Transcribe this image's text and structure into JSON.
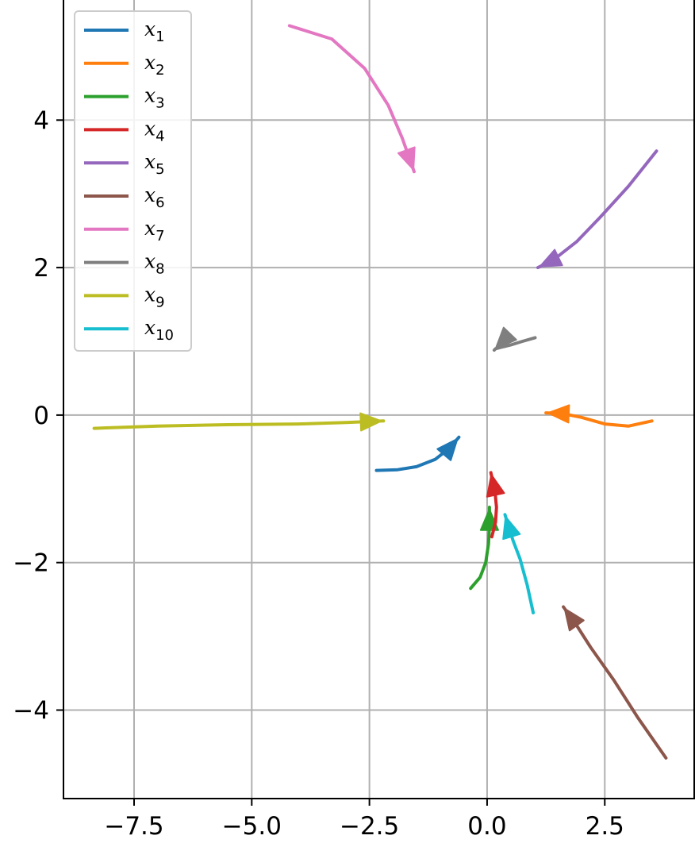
{
  "chart_data": {
    "type": "line",
    "title": "",
    "xlabel": "",
    "ylabel": "",
    "xlim": [
      -9.0,
      4.4
    ],
    "ylim": [
      -5.2,
      5.65
    ],
    "xticks": [
      -7.5,
      -5.0,
      -2.5,
      0.0,
      2.5
    ],
    "xtick_labels": [
      "−7.5",
      "−5.0",
      "−2.5",
      "0.0",
      "2.5"
    ],
    "yticks": [
      -4,
      -2,
      0,
      2,
      4
    ],
    "ytick_labels": [
      "−4",
      "−2",
      "0",
      "2",
      "4"
    ],
    "grid": true,
    "legend_position": "upper-left",
    "series": [
      {
        "name": "x",
        "sub": "1",
        "color": "#1f77b4",
        "x": [
          -2.35,
          -1.9,
          -1.5,
          -1.1,
          -0.8,
          -0.6
        ],
        "y": [
          -0.75,
          -0.74,
          -0.7,
          -0.6,
          -0.45,
          -0.3
        ]
      },
      {
        "name": "x",
        "sub": "2",
        "color": "#ff7f0e",
        "x": [
          3.5,
          3.0,
          2.5,
          2.0,
          1.6,
          1.25
        ],
        "y": [
          -0.08,
          -0.15,
          -0.12,
          -0.03,
          0.02,
          0.03
        ]
      },
      {
        "name": "x",
        "sub": "3",
        "color": "#2ca02c",
        "x": [
          -0.35,
          -0.15,
          -0.03,
          0.03,
          0.05,
          0.05
        ],
        "y": [
          -2.35,
          -2.2,
          -2.0,
          -1.75,
          -1.5,
          -1.25
        ]
      },
      {
        "name": "x",
        "sub": "4",
        "color": "#d62728",
        "x": [
          0.1,
          0.18,
          0.2,
          0.17,
          0.12,
          0.08
        ],
        "y": [
          -1.65,
          -1.45,
          -1.25,
          -1.05,
          -0.9,
          -0.78
        ]
      },
      {
        "name": "x",
        "sub": "5",
        "color": "#9467bd",
        "x": [
          3.6,
          3.0,
          2.4,
          1.9,
          1.4,
          1.08
        ],
        "y": [
          3.58,
          3.1,
          2.68,
          2.35,
          2.1,
          2.0
        ]
      },
      {
        "name": "x",
        "sub": "6",
        "color": "#8c564b",
        "x": [
          3.8,
          3.2,
          2.7,
          2.2,
          1.9,
          1.62
        ],
        "y": [
          -4.65,
          -4.1,
          -3.6,
          -3.15,
          -2.85,
          -2.6
        ]
      },
      {
        "name": "x",
        "sub": "7",
        "color": "#e377c2",
        "x": [
          -4.2,
          -3.3,
          -2.6,
          -2.1,
          -1.8,
          -1.55
        ],
        "y": [
          5.28,
          5.1,
          4.7,
          4.2,
          3.75,
          3.3
        ]
      },
      {
        "name": "x",
        "sub": "8",
        "color": "#7f7f7f",
        "x": [
          1.02,
          0.75,
          0.5,
          0.3,
          0.18,
          0.15
        ],
        "y": [
          1.05,
          1.0,
          0.95,
          0.92,
          0.9,
          0.88
        ]
      },
      {
        "name": "x",
        "sub": "9",
        "color": "#bcbd22",
        "x": [
          -8.35,
          -7.0,
          -5.5,
          -4.0,
          -3.0,
          -2.2
        ],
        "y": [
          -0.18,
          -0.15,
          -0.13,
          -0.12,
          -0.1,
          -0.08
        ]
      },
      {
        "name": "x",
        "sub": "10",
        "color": "#17becf",
        "x": [
          0.98,
          0.85,
          0.7,
          0.55,
          0.45,
          0.38
        ],
        "y": [
          -2.68,
          -2.3,
          -1.95,
          -1.7,
          -1.5,
          -1.35
        ]
      }
    ]
  }
}
